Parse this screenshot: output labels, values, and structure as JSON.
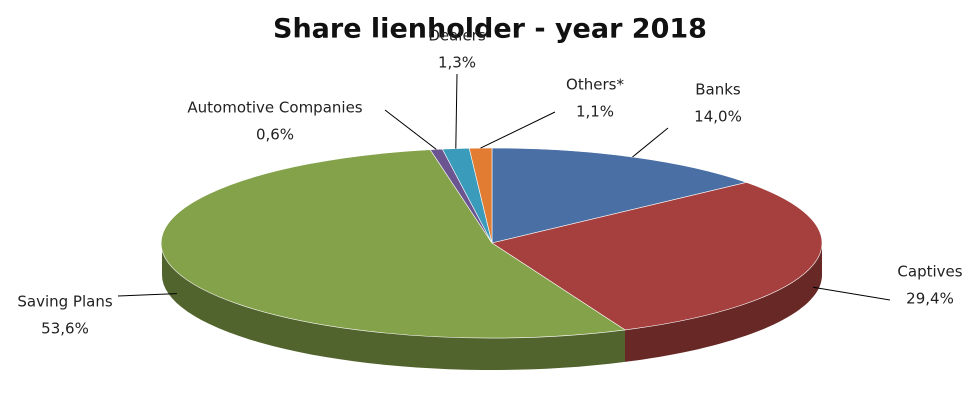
{
  "chart_data": {
    "type": "pie",
    "title": "Share lienholder - year 2018",
    "categories": [
      "Banks",
      "Captives",
      "Saving Plans",
      "Automotive Companies",
      "Dealers",
      "Others*"
    ],
    "values": [
      14.0,
      29.4,
      53.6,
      0.6,
      1.3,
      1.1
    ],
    "value_labels": [
      "14,0%",
      "29,4%",
      "53,6%",
      "0,6%",
      "1,3%",
      "1,1%"
    ],
    "colors": [
      "#4a6fa5",
      "#a6403e",
      "#84a24a",
      "#6a5591",
      "#3b9bbb",
      "#e27c32"
    ]
  }
}
